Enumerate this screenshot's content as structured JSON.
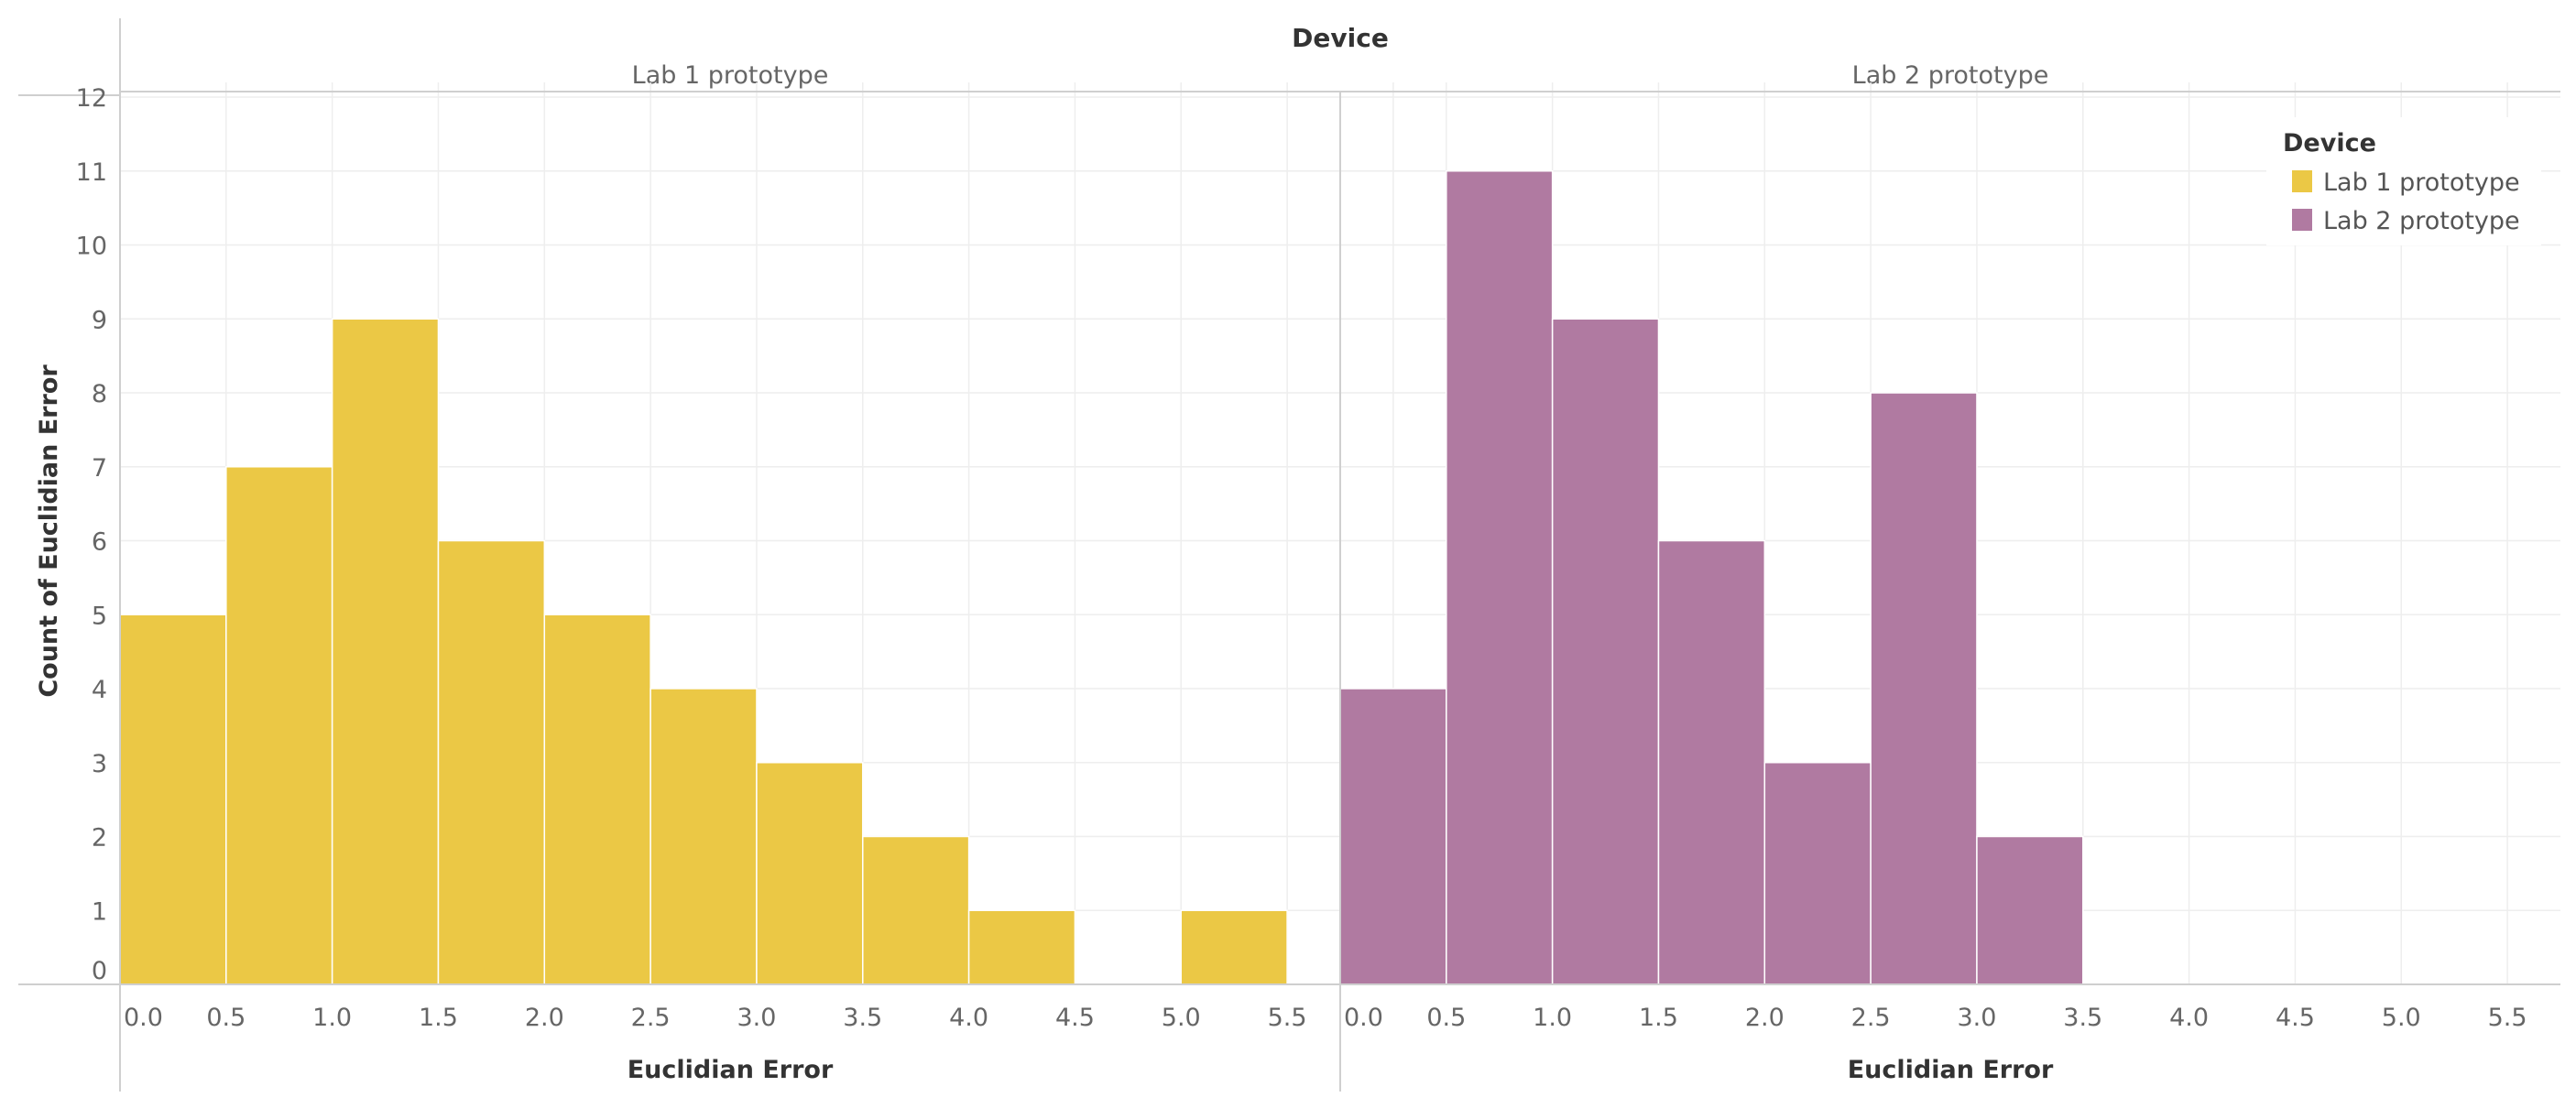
{
  "chart_data": {
    "type": "bar",
    "title": "Device",
    "xlabel": "Euclidian Error",
    "ylabel": "Count of Euclidian Error",
    "x_ticks": [
      "0.0",
      "0.5",
      "1.0",
      "1.5",
      "2.0",
      "2.5",
      "3.0",
      "3.5",
      "4.0",
      "4.5",
      "5.0",
      "5.5"
    ],
    "xlim": [
      0,
      5.75
    ],
    "ylim": [
      0,
      12
    ],
    "y_ticks": [
      0,
      1,
      2,
      3,
      4,
      5,
      6,
      7,
      8,
      9,
      10,
      11,
      12
    ],
    "bin_width": 0.5,
    "grid": true,
    "legend": {
      "title": "Device",
      "position": "top-right",
      "entries": [
        {
          "label": "Lab 1 prototype",
          "color": "#EBC845"
        },
        {
          "label": "Lab 2 prototype",
          "color": "#B07AA1"
        }
      ]
    },
    "panels": [
      {
        "name": "Lab 1 prototype",
        "color": "#EBC845",
        "bins": [
          {
            "x": 0.0,
            "value": 5
          },
          {
            "x": 0.5,
            "value": 7
          },
          {
            "x": 1.0,
            "value": 9
          },
          {
            "x": 1.5,
            "value": 6
          },
          {
            "x": 2.0,
            "value": 5
          },
          {
            "x": 2.5,
            "value": 4
          },
          {
            "x": 3.0,
            "value": 3
          },
          {
            "x": 3.5,
            "value": 2
          },
          {
            "x": 4.0,
            "value": 1
          },
          {
            "x": 5.0,
            "value": 1
          }
        ]
      },
      {
        "name": "Lab 2 prototype",
        "color": "#B07AA1",
        "bins": [
          {
            "x": 0.0,
            "value": 4
          },
          {
            "x": 0.5,
            "value": 11
          },
          {
            "x": 1.0,
            "value": 9
          },
          {
            "x": 1.5,
            "value": 6
          },
          {
            "x": 2.0,
            "value": 3
          },
          {
            "x": 2.5,
            "value": 8
          },
          {
            "x": 3.0,
            "value": 2
          }
        ]
      }
    ]
  }
}
